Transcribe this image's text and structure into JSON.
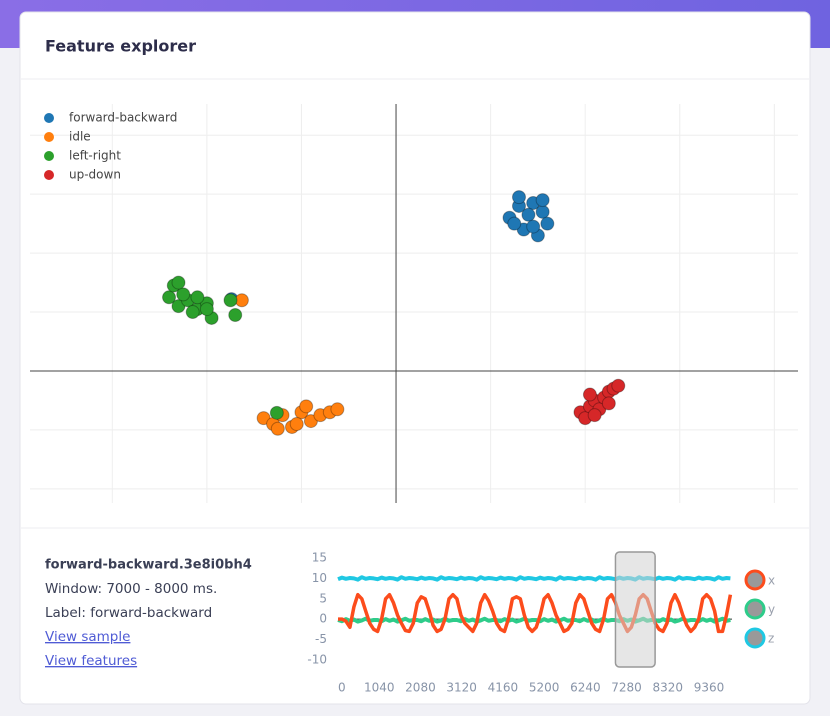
{
  "header": {
    "title": "Feature explorer"
  },
  "detail": {
    "title": "forward-backward.3e8i0bh4",
    "window": "Window: 7000 - 8000 ms.",
    "label": "Label: forward-backward",
    "links": [
      "View sample",
      "View features"
    ]
  },
  "chart_data": [
    {
      "type": "scatter",
      "grid": true,
      "legend": "upper left",
      "xlim": [
        -3.87,
        4.25
      ],
      "ylim": [
        -2.24,
        4.53
      ],
      "series": [
        {
          "name": "forward-backward",
          "color": "#1f77b4",
          "x": [
            1.2,
            1.3,
            1.45,
            1.55,
            1.6,
            1.35,
            1.25,
            1.5,
            1.4,
            1.3,
            1.55,
            1.45,
            -1.74
          ],
          "values": [
            2.6,
            2.8,
            2.85,
            2.7,
            2.5,
            2.4,
            2.5,
            2.3,
            2.65,
            2.95,
            2.9,
            2.45,
            1.22
          ]
        },
        {
          "name": "idle",
          "color": "#ff7f0e",
          "x": [
            -1.4,
            -1.3,
            -1.2,
            -1.1,
            -1.0,
            -0.9,
            -0.8,
            -0.7,
            -0.62,
            -1.25,
            -1.05,
            -0.95,
            -1.63
          ],
          "values": [
            -0.8,
            -0.9,
            -0.75,
            -0.95,
            -0.7,
            -0.85,
            -0.75,
            -0.7,
            -0.65,
            -0.98,
            -0.9,
            -0.6,
            1.2
          ]
        },
        {
          "name": "left-right",
          "color": "#2ca02c",
          "x": [
            -2.4,
            -2.35,
            -2.3,
            -2.2,
            -2.1,
            -2.0,
            -1.95,
            -2.25,
            -2.1,
            -2.3,
            -1.7,
            -1.75,
            -2.0,
            -2.15,
            -1.26
          ],
          "values": [
            1.25,
            1.45,
            1.1,
            1.2,
            1.05,
            1.15,
            0.9,
            1.3,
            1.25,
            1.5,
            0.95,
            1.2,
            1.05,
            1.0,
            -0.71
          ]
        },
        {
          "name": "up-down",
          "color": "#d62728",
          "x": [
            1.95,
            2.0,
            2.05,
            2.1,
            2.15,
            2.2,
            2.25,
            2.3,
            2.35,
            2.05,
            2.1,
            2.25
          ],
          "values": [
            -0.7,
            -0.8,
            -0.6,
            -0.5,
            -0.65,
            -0.45,
            -0.35,
            -0.3,
            -0.25,
            -0.4,
            -0.75,
            -0.55
          ]
        }
      ]
    },
    {
      "type": "line",
      "xlim": [
        0,
        9940
      ],
      "ylim": [
        -12,
        16
      ],
      "xticks": [
        0,
        1040,
        2080,
        3120,
        4160,
        5200,
        6240,
        7280,
        8320,
        9360
      ],
      "yticks": [
        15,
        10,
        5,
        0,
        -5,
        -10
      ],
      "highlight": [
        7000,
        8000
      ],
      "x": [
        0,
        100,
        200,
        300,
        400,
        500,
        600,
        700,
        800,
        900,
        1000,
        1100,
        1200,
        1300,
        1400,
        1500,
        1600,
        1700,
        1800,
        1900,
        2000,
        2100,
        2200,
        2300,
        2400,
        2500,
        2600,
        2700,
        2800,
        2900,
        3000,
        3100,
        3200,
        3300,
        3400,
        3500,
        3600,
        3700,
        3800,
        3900,
        4000,
        4100,
        4200,
        4300,
        4400,
        4500,
        4600,
        4700,
        4800,
        4900,
        5000,
        5100,
        5200,
        5300,
        5400,
        5500,
        5600,
        5700,
        5800,
        5900,
        6000,
        6100,
        6200,
        6300,
        6400,
        6500,
        6600,
        6700,
        6800,
        6900,
        7000,
        7100,
        7200,
        7300,
        7400,
        7500,
        7600,
        7700,
        7800,
        7900,
        8000,
        8100,
        8200,
        8300,
        8400,
        8500,
        8600,
        8700,
        8800,
        8900,
        9000,
        9100,
        9200,
        9300,
        9400,
        9500,
        9600,
        9700,
        9800,
        9900
      ],
      "series": [
        {
          "name": "x",
          "color": "#fc4c1c",
          "values": [
            0,
            0,
            -0.5,
            -2,
            3,
            6,
            5,
            2,
            -1,
            -2.5,
            -3,
            0,
            5,
            6,
            4,
            1,
            -1,
            -2.8,
            -3,
            -1,
            4,
            5.5,
            5,
            2,
            -1.5,
            -3,
            -2.5,
            0,
            5,
            6,
            5,
            1,
            -1,
            -2,
            -3,
            -1,
            4,
            6,
            4.5,
            2,
            -1,
            -2.5,
            -3,
            0,
            5,
            5.5,
            5,
            1,
            -2,
            -3,
            -2,
            1,
            5,
            6,
            4,
            1,
            -1,
            -3,
            -2.5,
            -1,
            4,
            6,
            5,
            2,
            -1,
            -2.5,
            -3,
            0,
            5,
            6,
            4,
            1,
            -1,
            -3,
            -2,
            1,
            5,
            6,
            5,
            2,
            -1,
            -2.5,
            -3,
            -1,
            4,
            6,
            4,
            1,
            -1.5,
            -3,
            -2,
            0,
            5,
            6,
            5,
            2,
            -3,
            -3,
            1,
            6
          ]
        },
        {
          "name": "y",
          "color": "#2ecc8a",
          "values": [
            -0.2,
            -0.5,
            0,
            -0.4,
            -0.1,
            -0.6,
            -0.3,
            0.1,
            -0.4,
            -0.2,
            -0.2,
            -0.5,
            0,
            -0.4,
            -0.1,
            -0.6,
            -0.3,
            0.1,
            -0.4,
            -0.2,
            -0.2,
            -0.5,
            0,
            -0.4,
            -0.1,
            -0.6,
            -0.3,
            0.1,
            -0.4,
            -0.2,
            -0.2,
            -0.5,
            0,
            -0.4,
            -0.1,
            -0.6,
            -0.3,
            0.1,
            -0.4,
            -0.2,
            -0.2,
            -0.5,
            0,
            -0.4,
            -0.1,
            -0.6,
            -0.3,
            0.1,
            -0.4,
            -0.2,
            -0.2,
            -0.5,
            0,
            -0.4,
            -0.1,
            -0.6,
            -0.3,
            0.1,
            -0.4,
            -0.2,
            -0.2,
            -0.5,
            0,
            -0.4,
            -0.1,
            -0.6,
            -0.3,
            0.1,
            -0.4,
            -0.2,
            -0.2,
            -0.5,
            0,
            -0.4,
            -0.1,
            -0.6,
            -0.3,
            0.1,
            -0.4,
            -0.2,
            -0.2,
            -0.5,
            0,
            -0.4,
            -0.1,
            -0.6,
            -0.3,
            0.1,
            -0.4,
            -0.2,
            -0.2,
            -0.5,
            0,
            -0.4,
            -0.1,
            -0.6,
            -0.3,
            0.1,
            -0.4,
            -0.2
          ]
        },
        {
          "name": "z",
          "color": "#1fc8e3",
          "values": [
            9.8,
            10.2,
            9.9,
            10.1,
            10,
            9.7,
            10.3,
            9.9,
            10.1,
            10,
            9.8,
            10.2,
            9.9,
            10.1,
            10,
            9.7,
            10.3,
            9.9,
            10.1,
            10,
            9.8,
            10.2,
            9.9,
            10.1,
            10,
            9.7,
            10.3,
            9.9,
            10.1,
            10,
            9.8,
            10.2,
            9.9,
            10.1,
            10,
            9.7,
            10.3,
            9.9,
            10.1,
            10,
            9.8,
            10.2,
            9.9,
            10.1,
            10,
            9.7,
            10.3,
            9.9,
            10.1,
            10,
            9.8,
            10.2,
            9.9,
            10.1,
            10,
            9.7,
            10.3,
            9.9,
            10.1,
            10,
            9.8,
            10.2,
            9.9,
            10.1,
            10,
            9.7,
            10.3,
            9.9,
            10.1,
            10,
            9.8,
            10.2,
            9.9,
            10.1,
            10,
            9.7,
            10.3,
            9.9,
            10.1,
            10,
            9.8,
            10.2,
            9.9,
            10.1,
            10,
            9.7,
            10.3,
            9.9,
            10.1,
            10,
            9.8,
            10.2,
            9.9,
            10.1,
            10,
            9.7,
            10.3,
            9.9,
            10.1,
            10
          ]
        }
      ]
    }
  ]
}
